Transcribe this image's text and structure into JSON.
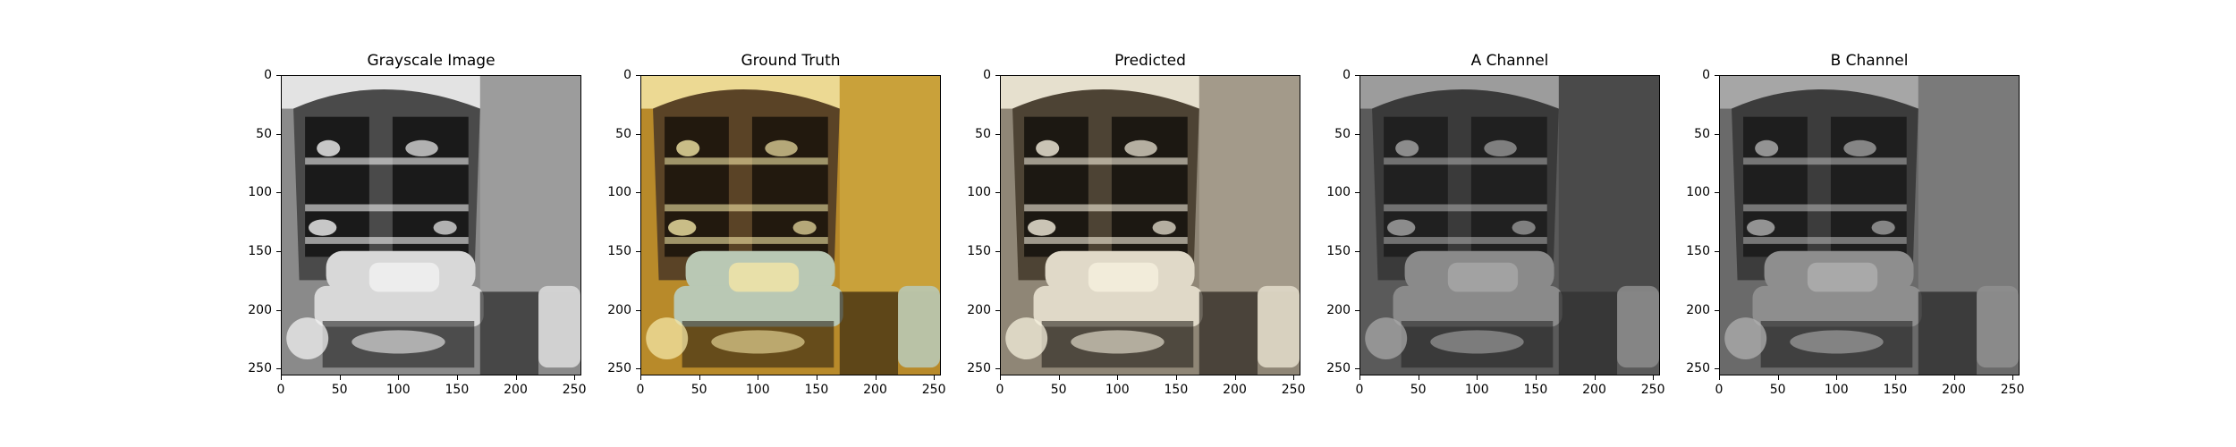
{
  "figure": {
    "panels": [
      {
        "id": "grayscale",
        "title": "Grayscale Image",
        "palette": {
          "bg": "#8a8a8a",
          "wall": "#9c9c9c",
          "cab": "#4a4a4a",
          "sofa": "#d8d8d8",
          "dark": "#1a1a1a",
          "light": "#f2f2f2"
        }
      },
      {
        "id": "ground-truth",
        "title": "Ground Truth",
        "palette": {
          "bg": "#b88a2a",
          "wall": "#c9a13a",
          "cab": "#5a4326",
          "sofa": "#b9c8b4",
          "dark": "#22190e",
          "light": "#f4e6a6"
        }
      },
      {
        "id": "predicted",
        "title": "Predicted",
        "palette": {
          "bg": "#8f8676",
          "wall": "#a39a8a",
          "cab": "#4d4334",
          "sofa": "#e0d9c8",
          "dark": "#1c1812",
          "light": "#f6f0de"
        }
      },
      {
        "id": "a-channel",
        "title": "A Channel",
        "palette": {
          "bg": "#5a5a5a",
          "wall": "#4a4a4a",
          "cab": "#3a3a3a",
          "sofa": "#8a8a8a",
          "dark": "#202020",
          "light": "#a8a8a8"
        }
      },
      {
        "id": "b-channel",
        "title": "B Channel",
        "palette": {
          "bg": "#6a6a6a",
          "wall": "#7a7a7a",
          "cab": "#3c3c3c",
          "sofa": "#8e8e8e",
          "dark": "#1e1e1e",
          "light": "#b0b0b0"
        }
      }
    ],
    "x_ticks": [
      "0",
      "50",
      "100",
      "150",
      "200",
      "250"
    ],
    "y_ticks": [
      "0",
      "50",
      "100",
      "150",
      "200",
      "250"
    ],
    "axis_range": [
      0,
      256
    ]
  }
}
